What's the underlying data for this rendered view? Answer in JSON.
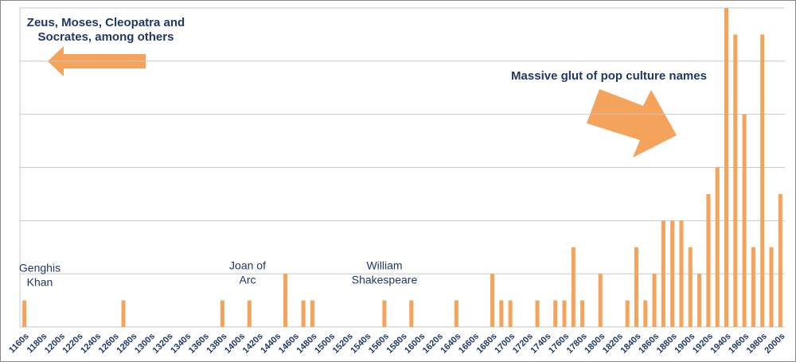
{
  "chart_data": {
    "type": "bar",
    "categories": [
      "1160s",
      null,
      "1180s",
      null,
      "1200s",
      null,
      "1220s",
      null,
      "1240s",
      null,
      "1260s",
      null,
      "1280s",
      null,
      "1300s",
      null,
      "1320s",
      null,
      "1340s",
      null,
      "1360s",
      null,
      "1380s",
      null,
      "1400s",
      null,
      "1420s",
      null,
      "1440s",
      null,
      "1460s",
      null,
      "1480s",
      null,
      "1500s",
      null,
      "1520s",
      null,
      "1540s",
      null,
      "1560s",
      null,
      "1580s",
      null,
      "1600s",
      null,
      "1620s",
      null,
      "1640s",
      null,
      "1660s",
      null,
      "1680s",
      null,
      "1700s",
      null,
      "1720s",
      null,
      "1740s",
      null,
      "1760s",
      null,
      "1780s",
      null,
      "1800s",
      null,
      "1820s",
      null,
      "1840s",
      null,
      "1860s",
      null,
      "1880s",
      null,
      "1900s",
      null,
      "1920s",
      null,
      "1940s",
      null,
      "1960s",
      null,
      "1980s",
      null,
      "2000s"
    ],
    "values": [
      1,
      0,
      0,
      0,
      0,
      0,
      0,
      0,
      0,
      0,
      0,
      1,
      0,
      0,
      0,
      0,
      0,
      0,
      0,
      0,
      0,
      0,
      1,
      0,
      0,
      1,
      0,
      0,
      0,
      2,
      0,
      1,
      1,
      0,
      0,
      0,
      0,
      0,
      0,
      0,
      1,
      0,
      0,
      1,
      0,
      0,
      0,
      0,
      1,
      0,
      0,
      0,
      2,
      1,
      1,
      0,
      0,
      1,
      0,
      1,
      1,
      3,
      1,
      0,
      2,
      0,
      0,
      1,
      3,
      1,
      2,
      4,
      4,
      4,
      3,
      2,
      5,
      6,
      12,
      11,
      8,
      3,
      11,
      3,
      5
    ],
    "color": "#f5a25a",
    "ylim": [
      0,
      12
    ],
    "yticks": [
      0,
      2,
      4,
      6,
      8,
      10,
      12
    ],
    "grid": true,
    "annotations": [
      {
        "lines": [
          "Zeus, Moses, Cleopatra and",
          "Socrates, among others"
        ]
      },
      {
        "lines": [
          "Massive glut of pop culture names"
        ]
      },
      {
        "lines": [
          "Genghis",
          "Khan"
        ]
      },
      {
        "lines": [
          "Joan of",
          "Arc"
        ]
      },
      {
        "lines": [
          "William",
          "Shakespeare"
        ]
      }
    ]
  }
}
